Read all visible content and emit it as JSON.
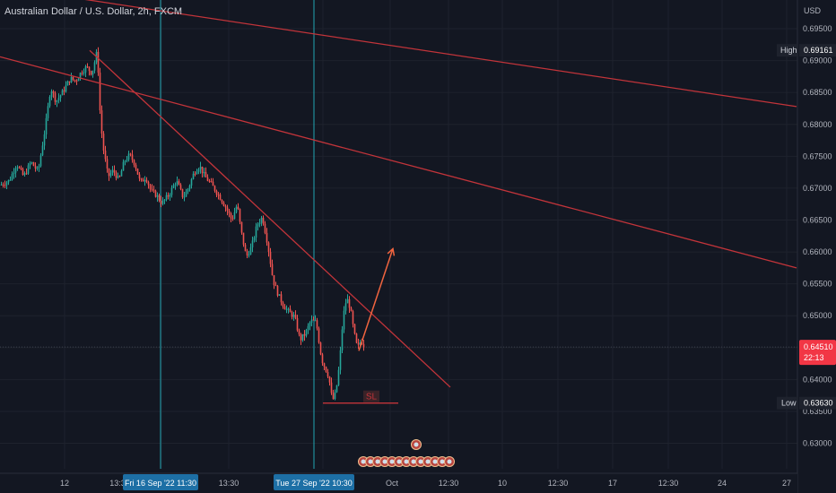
{
  "legend": {
    "title": "Australian Dollar / U.S. Dollar, 2h, FXCM"
  },
  "price_axis": {
    "currency": "USD",
    "ticks": [
      "0.69500",
      "0.69000",
      "0.68500",
      "0.68000",
      "0.67500",
      "0.67000",
      "0.66500",
      "0.66000",
      "0.65500",
      "0.65000",
      "0.64500",
      "0.64000",
      "0.63500",
      "0.63000"
    ],
    "tick_values": [
      0.695,
      0.69,
      0.685,
      0.68,
      0.675,
      0.67,
      0.665,
      0.66,
      0.655,
      0.65,
      0.645,
      0.64,
      0.635,
      0.63
    ],
    "high_label": "High",
    "high_value": "0.69161",
    "low_label": "Low",
    "low_value": "0.63630",
    "current_value": "0.64510",
    "countdown": "22:13"
  },
  "time_axis": {
    "ticks": [
      "12",
      "13:3",
      "13:30",
      "Oct",
      "10",
      "12:30",
      "17",
      "12:30",
      "24",
      "12:30",
      "27"
    ],
    "highlighted": [
      "Fri 16 Sep '22   11:30",
      "Tue 27 Sep '22   10:30"
    ]
  },
  "annotations": {
    "sl_label": "SL"
  },
  "colors": {
    "background": "#131722",
    "grid": "#1e222d",
    "up": "#26a69a",
    "down": "#ef5350",
    "trendline": "#c2343a",
    "arrow": "#f0643f",
    "vertical_marker": "#22a6b3",
    "price_tag": "#f23645",
    "axis_text": "#b2b5be"
  },
  "chart_data": {
    "type": "candlestick",
    "symbol": "AUDUSD",
    "timeframe": "2h",
    "high": 0.69161,
    "low": 0.6363,
    "last": 0.6451,
    "ylim": [
      0.626,
      0.6995
    ],
    "close_path": [
      [
        0,
        0.6705
      ],
      [
        10,
        0.6712
      ],
      [
        18,
        0.6738
      ],
      [
        26,
        0.6718
      ],
      [
        34,
        0.6741
      ],
      [
        42,
        0.6726
      ],
      [
        50,
        0.6795
      ],
      [
        56,
        0.6858
      ],
      [
        62,
        0.6836
      ],
      [
        70,
        0.6852
      ],
      [
        78,
        0.6872
      ],
      [
        84,
        0.6868
      ],
      [
        90,
        0.6882
      ],
      [
        96,
        0.689
      ],
      [
        102,
        0.688
      ],
      [
        108,
        0.6916
      ],
      [
        111,
        0.6822
      ],
      [
        114,
        0.6768
      ],
      [
        120,
        0.6718
      ],
      [
        126,
        0.6728
      ],
      [
        132,
        0.6712
      ],
      [
        138,
        0.6742
      ],
      [
        144,
        0.6752
      ],
      [
        150,
        0.6738
      ],
      [
        156,
        0.6708
      ],
      [
        162,
        0.6718
      ],
      [
        168,
        0.6695
      ],
      [
        174,
        0.6689
      ],
      [
        180,
        0.6676
      ],
      [
        188,
        0.669
      ],
      [
        196,
        0.6712
      ],
      [
        204,
        0.6685
      ],
      [
        210,
        0.6702
      ],
      [
        216,
        0.6725
      ],
      [
        222,
        0.6735
      ],
      [
        228,
        0.6718
      ],
      [
        234,
        0.6708
      ],
      [
        240,
        0.6696
      ],
      [
        246,
        0.6683
      ],
      [
        252,
        0.6668
      ],
      [
        258,
        0.665
      ],
      [
        264,
        0.6675
      ],
      [
        268,
        0.6635
      ],
      [
        274,
        0.6592
      ],
      [
        280,
        0.6608
      ],
      [
        286,
        0.6642
      ],
      [
        292,
        0.6655
      ],
      [
        298,
        0.6612
      ],
      [
        304,
        0.6555
      ],
      [
        310,
        0.6532
      ],
      [
        316,
        0.6515
      ],
      [
        322,
        0.6505
      ],
      [
        328,
        0.6498
      ],
      [
        334,
        0.6462
      ],
      [
        340,
        0.6472
      ],
      [
        346,
        0.6492
      ],
      [
        352,
        0.649
      ],
      [
        358,
        0.6432
      ],
      [
        362,
        0.6418
      ],
      [
        366,
        0.6405
      ],
      [
        370,
        0.6366
      ],
      [
        374,
        0.638
      ],
      [
        378,
        0.6425
      ],
      [
        382,
        0.6498
      ],
      [
        386,
        0.6528
      ],
      [
        390,
        0.6512
      ],
      [
        394,
        0.6475
      ],
      [
        398,
        0.6448
      ],
      [
        402,
        0.6462
      ],
      [
        406,
        0.6451
      ]
    ],
    "trendlines": [
      {
        "x1": 0,
        "y1": 0.6906,
        "x2": 888,
        "y2": 0.6575
      },
      {
        "x1": 80,
        "y1": 0.6999,
        "x2": 888,
        "y2": 0.6828
      },
      {
        "x1": 100,
        "y1": 0.6916,
        "x2": 502,
        "y2": 0.6388
      }
    ],
    "projection": [
      [
        400,
        0.6445
      ],
      [
        438,
        0.6605
      ]
    ],
    "sl_level": 0.6363,
    "vertical_markers_x": [
      179,
      350
    ]
  }
}
